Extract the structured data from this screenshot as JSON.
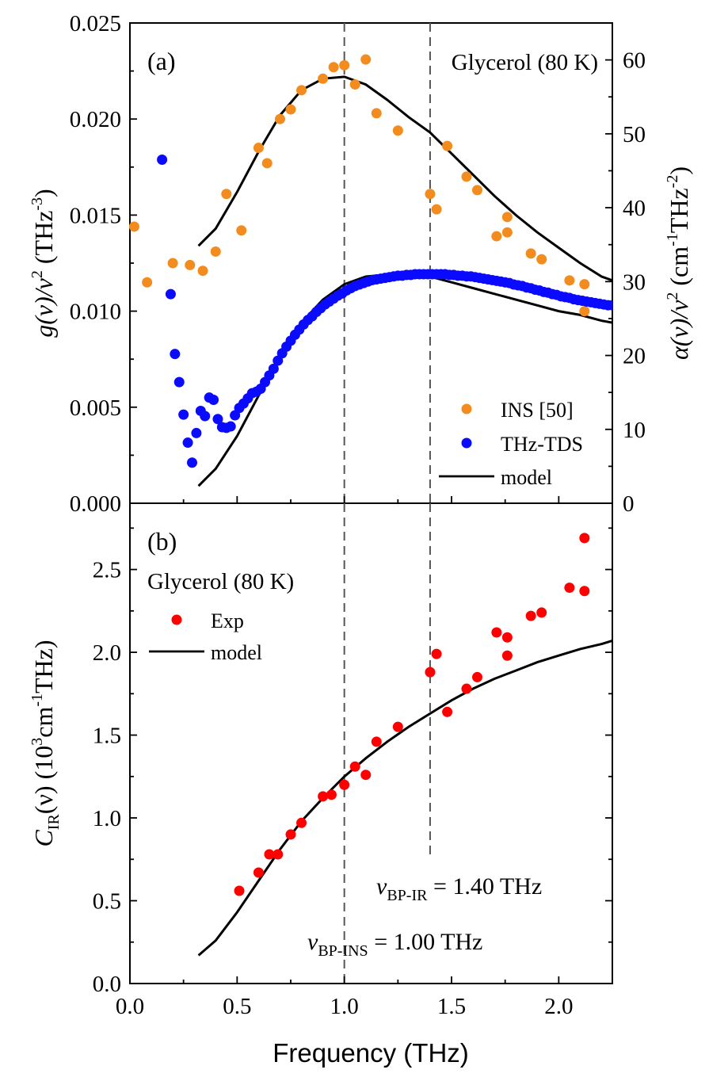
{
  "chart_data": [
    {
      "panel_label": "(a)",
      "type": "scatter",
      "annotation": "Glycerol (80 K)",
      "xlim": [
        0.0,
        2.25
      ],
      "ylim": [
        0.0,
        0.025
      ],
      "yticks": [
        "0.000",
        "0.005",
        "0.010",
        "0.015",
        "0.020",
        "0.025"
      ],
      "y2lim": [
        0,
        65
      ],
      "y2ticks": [
        "0",
        "10",
        "20",
        "30",
        "40",
        "50",
        "60"
      ],
      "ylabel": {
        "main": "g(ν)/ν",
        "sup": "2",
        "unit": " (THz",
        "unit_sup": "-3",
        "close": ")"
      },
      "y2label": {
        "main": "α(ν)/ν",
        "sup": "2",
        "unit": " (cm",
        "unit_sup1": "-1",
        "unit_mid": "THz",
        "unit_sup2": "-2",
        "close": ")"
      },
      "legend": [
        "INS [50]",
        "THz-TDS",
        "model"
      ],
      "legend_position": "bottom-right",
      "colors": {
        "ins": "#f28c1e",
        "thz": "#0a0aff",
        "model": "#000000"
      },
      "series": [
        {
          "name": "INS [50]",
          "axis": "left",
          "x": [
            0.02,
            0.08,
            0.2,
            0.28,
            0.34,
            0.4,
            0.45,
            0.52,
            0.6,
            0.64,
            0.7,
            0.75,
            0.8,
            0.9,
            0.95,
            1.0,
            1.05,
            1.1,
            1.15,
            1.25,
            1.4,
            1.43,
            1.48,
            1.57,
            1.62,
            1.71,
            1.76,
            1.76,
            1.87,
            1.92,
            2.05,
            2.12,
            2.12
          ],
          "y": [
            0.0144,
            0.0115,
            0.0125,
            0.0124,
            0.0121,
            0.0131,
            0.0161,
            0.0142,
            0.0185,
            0.0177,
            0.02,
            0.0205,
            0.0215,
            0.0221,
            0.0227,
            0.0228,
            0.0218,
            0.0231,
            0.0203,
            0.0194,
            0.0161,
            0.0153,
            0.0186,
            0.017,
            0.0163,
            0.0139,
            0.0141,
            0.0149,
            0.013,
            0.0127,
            0.0116,
            0.0114,
            0.01
          ]
        },
        {
          "name": "THz-TDS",
          "axis": "right",
          "x": [
            0.15,
            0.19,
            0.21,
            0.23,
            0.25,
            0.27,
            0.29,
            0.31,
            0.33,
            0.35,
            0.37,
            0.39,
            0.41,
            0.43,
            0.45,
            0.47,
            0.49,
            0.51,
            0.53,
            0.55,
            0.57,
            0.59,
            0.61,
            0.63,
            0.65,
            0.67,
            0.69,
            0.71,
            0.73,
            0.75,
            0.77,
            0.79,
            0.81,
            0.83,
            0.85,
            0.87,
            0.89,
            0.91,
            0.93,
            0.95,
            0.97,
            0.99,
            1.01,
            1.03,
            1.05,
            1.07,
            1.09,
            1.11,
            1.13,
            1.15,
            1.17,
            1.19,
            1.21,
            1.23,
            1.25,
            1.27,
            1.29,
            1.31,
            1.33,
            1.35,
            1.37,
            1.39,
            1.41,
            1.43,
            1.45,
            1.47,
            1.49,
            1.51,
            1.53,
            1.55,
            1.57,
            1.59,
            1.61,
            1.63,
            1.65,
            1.67,
            1.69,
            1.71,
            1.73,
            1.75,
            1.77,
            1.79,
            1.81,
            1.83,
            1.85,
            1.87,
            1.89,
            1.91,
            1.93,
            1.95,
            1.97,
            1.99,
            2.01,
            2.03,
            2.05,
            2.07,
            2.09,
            2.11,
            2.13,
            2.15,
            2.17,
            2.19,
            2.21,
            2.23,
            2.25
          ],
          "y": [
            46.5,
            28.3,
            20.2,
            16.4,
            12.0,
            8.2,
            5.5,
            9.5,
            12.5,
            11.8,
            14.3,
            14.0,
            11.4,
            10.3,
            10.2,
            10.4,
            11.9,
            12.9,
            13.5,
            14.2,
            14.9,
            15.1,
            15.5,
            16.4,
            17.3,
            18.2,
            19.3,
            20.3,
            21.2,
            22.0,
            22.8,
            23.5,
            24.2,
            24.8,
            25.3,
            25.9,
            26.4,
            26.9,
            27.3,
            27.7,
            28.1,
            28.4,
            28.8,
            29.1,
            29.4,
            29.6,
            29.8,
            30.0,
            30.2,
            30.3,
            30.4,
            30.5,
            30.6,
            30.7,
            30.8,
            30.8,
            30.9,
            30.9,
            31.0,
            31.0,
            31.0,
            31.0,
            31.0,
            31.0,
            31.0,
            31.0,
            30.9,
            30.9,
            30.8,
            30.8,
            30.7,
            30.7,
            30.6,
            30.5,
            30.4,
            30.3,
            30.2,
            30.1,
            30.0,
            29.9,
            29.8,
            29.6,
            29.5,
            29.4,
            29.2,
            29.1,
            28.9,
            28.8,
            28.6,
            28.5,
            28.3,
            28.2,
            28.0,
            27.9,
            27.8,
            27.6,
            27.5,
            27.4,
            27.3,
            27.2,
            27.1,
            27.0,
            26.9,
            26.8,
            26.8
          ]
        },
        {
          "name": "model",
          "axis": "left",
          "x": [
            0.32,
            0.4,
            0.5,
            0.6,
            0.7,
            0.8,
            0.9,
            1.0,
            1.1,
            1.2,
            1.3,
            1.4,
            1.5,
            1.6,
            1.7,
            1.8,
            1.9,
            2.0,
            2.1,
            2.2,
            2.25
          ],
          "y": [
            0.0134,
            0.0143,
            0.0162,
            0.0183,
            0.0202,
            0.0215,
            0.0221,
            0.0222,
            0.0218,
            0.021,
            0.0201,
            0.0193,
            0.0182,
            0.0171,
            0.016,
            0.015,
            0.0141,
            0.0133,
            0.0125,
            0.0118,
            0.0116
          ]
        },
        {
          "name": "model",
          "axis": "left",
          "x": [
            0.32,
            0.4,
            0.5,
            0.6,
            0.7,
            0.8,
            0.9,
            1.0,
            1.1,
            1.2,
            1.3,
            1.4,
            1.5,
            1.6,
            1.7,
            1.8,
            1.9,
            2.0,
            2.1,
            2.2,
            2.25
          ],
          "y": [
            0.0009,
            0.0018,
            0.0035,
            0.0056,
            0.0076,
            0.0094,
            0.0106,
            0.0114,
            0.0118,
            0.0119,
            0.0119,
            0.0118,
            0.0115,
            0.0112,
            0.0109,
            0.0106,
            0.0103,
            0.01,
            0.0098,
            0.0095,
            0.0094
          ]
        }
      ],
      "vlines": [
        1.0,
        1.4
      ]
    },
    {
      "panel_label": "(b)",
      "type": "scatter",
      "annotation": "Glycerol (80 K)",
      "xlim": [
        0.0,
        2.25
      ],
      "xticks": [
        "0.0",
        "0.5",
        "1.0",
        "1.5",
        "2.0"
      ],
      "ylim": [
        0.0,
        2.9
      ],
      "yticks": [
        "0.0",
        "0.5",
        "1.0",
        "1.5",
        "2.0",
        "2.5"
      ],
      "xlabel": "Frequency (THz)",
      "ylabel": {
        "main": "C",
        "sub": "IR",
        "mid": "(ν) (10",
        "sup1": "3",
        "unit": "cm",
        "sup2": "-1",
        "tail": "THz)"
      },
      "legend": [
        "Exp",
        "model"
      ],
      "legend_position": "top-left",
      "colors": {
        "exp": "#ff0000",
        "model": "#000000"
      },
      "series": [
        {
          "name": "Exp",
          "x": [
            0.51,
            0.6,
            0.65,
            0.69,
            0.75,
            0.8,
            0.9,
            0.94,
            1.0,
            1.05,
            1.1,
            1.15,
            1.25,
            1.4,
            1.43,
            1.48,
            1.57,
            1.62,
            1.71,
            1.76,
            1.76,
            1.87,
            1.92,
            2.05,
            2.12,
            2.12
          ],
          "y": [
            0.56,
            0.67,
            0.78,
            0.78,
            0.9,
            0.97,
            1.13,
            1.14,
            1.2,
            1.31,
            1.26,
            1.46,
            1.55,
            1.88,
            1.99,
            1.64,
            1.78,
            1.85,
            2.12,
            2.09,
            1.98,
            2.22,
            2.24,
            2.39,
            2.37,
            2.69
          ]
        },
        {
          "name": "model",
          "x": [
            0.32,
            0.4,
            0.5,
            0.6,
            0.7,
            0.8,
            0.9,
            1.0,
            1.1,
            1.2,
            1.3,
            1.4,
            1.5,
            1.6,
            1.7,
            1.8,
            1.9,
            2.0,
            2.1,
            2.2,
            2.25
          ],
          "y": [
            0.17,
            0.26,
            0.43,
            0.62,
            0.81,
            0.98,
            1.12,
            1.25,
            1.36,
            1.46,
            1.55,
            1.63,
            1.71,
            1.78,
            1.84,
            1.89,
            1.94,
            1.98,
            2.02,
            2.05,
            2.07
          ]
        }
      ],
      "annotations": {
        "bp_ir": {
          "sym": "ν",
          "sub": "BP-IR",
          "value": " = 1.40 THz"
        },
        "bp_ins": {
          "sym": "ν",
          "sub": "BP-INS",
          "value": " = 1.00 THz"
        }
      }
    }
  ]
}
